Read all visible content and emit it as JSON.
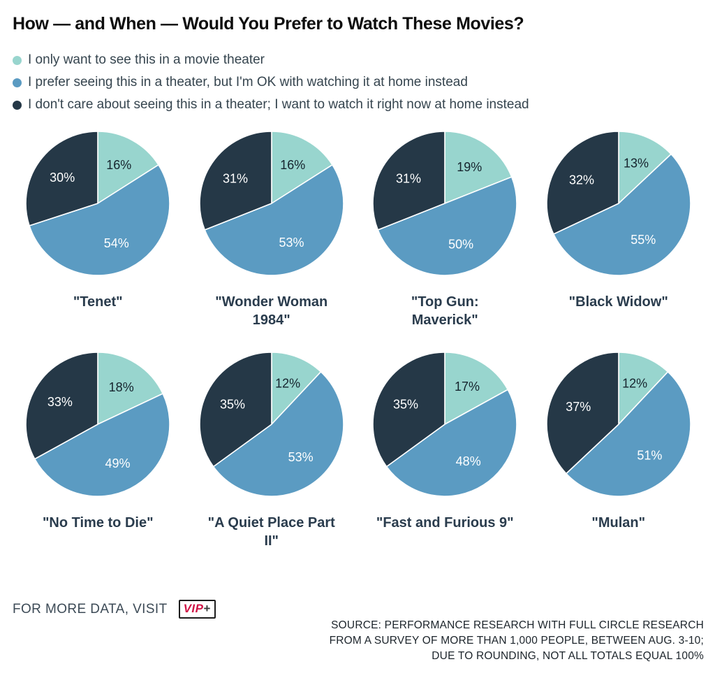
{
  "title": "How — and When — Would You Prefer to Watch These Movies?",
  "legend": [
    {
      "label": "I only want to see this in a movie theater",
      "color": "#98d5ce"
    },
    {
      "label": "I prefer seeing this in a theater, but I'm OK with watching it at home instead",
      "color": "#5b9bc2"
    },
    {
      "label": "I don't care about seeing this in a theater; I want to watch it right now at home instead",
      "color": "#253847"
    }
  ],
  "chart_data": {
    "type": "pie",
    "layout": "small-multiples-4x2",
    "start_angle_deg": 0,
    "direction": "clockwise",
    "legend_position": "top-left",
    "series_labels": [
      "I only want to see this in a movie theater",
      "I prefer seeing this in a theater, but I'm OK with watching it at home instead",
      "I don't care about seeing this in a theater; I want to watch it right now at home instead"
    ],
    "colors": [
      "#98d5ce",
      "#5b9bc2",
      "#253847"
    ],
    "slice_label_colors": [
      "#16242e",
      "#ffffff",
      "#ffffff"
    ],
    "label_format": "percent",
    "pies": [
      {
        "title": "\"Tenet\"",
        "title_lines": [
          "\"Tenet\""
        ],
        "values": [
          16,
          54,
          30
        ]
      },
      {
        "title": "\"Wonder Woman 1984\"",
        "title_lines": [
          "\"Wonder Woman",
          "1984\""
        ],
        "values": [
          16,
          53,
          31
        ]
      },
      {
        "title": "\"Top Gun: Maverick\"",
        "title_lines": [
          "\"Top Gun:",
          "Maverick\""
        ],
        "values": [
          19,
          50,
          31
        ]
      },
      {
        "title": "\"Black Widow\"",
        "title_lines": [
          "\"Black Widow\""
        ],
        "values": [
          13,
          55,
          32
        ]
      },
      {
        "title": "\"No Time to Die\"",
        "title_lines": [
          "\"No Time to Die\""
        ],
        "values": [
          18,
          49,
          33
        ]
      },
      {
        "title": "\"A Quiet Place Part II\"",
        "title_lines": [
          "\"A Quiet Place Part",
          "II\""
        ],
        "values": [
          12,
          53,
          35
        ]
      },
      {
        "title": "\"Fast and Furious 9\"",
        "title_lines": [
          "\"Fast and Furious 9\""
        ],
        "values": [
          17,
          48,
          35
        ]
      },
      {
        "title": "\"Mulan\"",
        "title_lines": [
          "\"Mulan\""
        ],
        "values": [
          12,
          51,
          37
        ]
      }
    ]
  },
  "footer": {
    "more_data_text": "FOR MORE DATA, VISIT",
    "logo": {
      "vip": "VIP",
      "plus": "+"
    },
    "source_lines": [
      "SOURCE: PERFORMANCE RESEARCH WITH FULL CIRCLE RESEARCH",
      "FROM A SURVEY OF MORE THAN 1,000 PEOPLE, BETWEEN AUG. 3-10;",
      "DUE TO ROUNDING, NOT ALL TOTALS EQUAL 100%"
    ]
  },
  "colors": {
    "background": "#ffffff",
    "title_text": "#0d0d0d",
    "legend_text": "#36454f",
    "pie_title_text": "#2a3c4d",
    "footer_text": "#3c4a56",
    "source_text": "#1c242b",
    "vip_red": "#cf1446",
    "slice_divider": "#ffffff"
  }
}
